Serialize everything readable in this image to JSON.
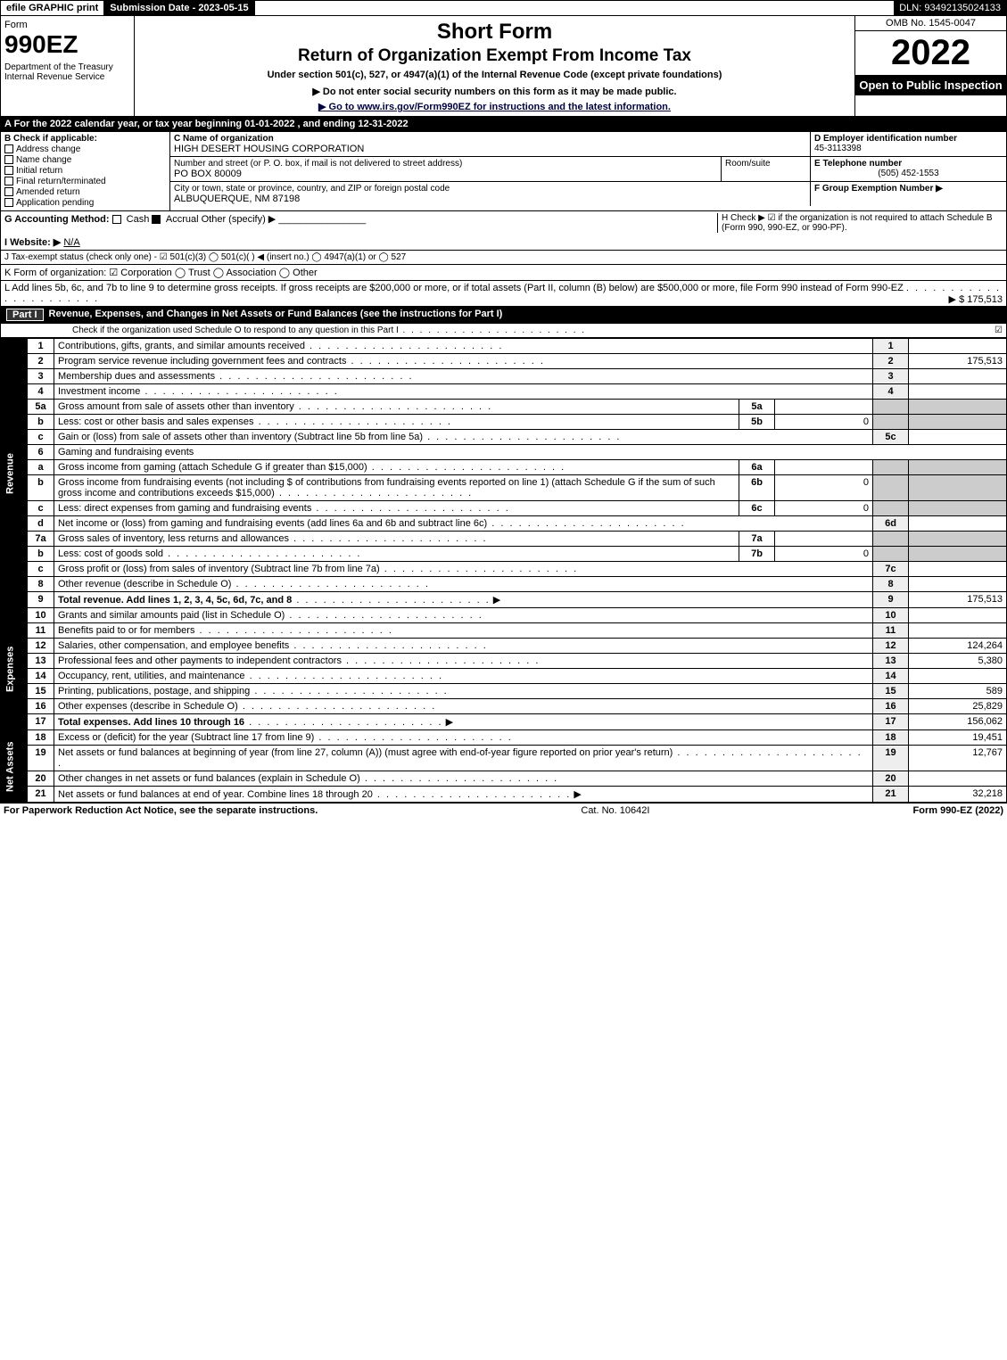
{
  "header_bar": {
    "efile": "efile GRAPHIC print",
    "submission": "Submission Date - 2023-05-15",
    "dln": "DLN: 93492135024133"
  },
  "top": {
    "form_word": "Form",
    "form_num": "990EZ",
    "dept": "Department of the Treasury\nInternal Revenue Service",
    "title1": "Short Form",
    "title2": "Return of Organization Exempt From Income Tax",
    "subtitle": "Under section 501(c), 527, or 4947(a)(1) of the Internal Revenue Code (except private foundations)",
    "warn": "▶ Do not enter social security numbers on this form as it may be made public.",
    "goto": "▶ Go to www.irs.gov/Form990EZ for instructions and the latest information.",
    "omb": "OMB No. 1545-0047",
    "year": "2022",
    "inspect": "Open to Public Inspection"
  },
  "sectA": "A  For the 2022 calendar year, or tax year beginning 01-01-2022 , and ending 12-31-2022",
  "colB": {
    "label": "B  Check if applicable:",
    "opts": [
      "Address change",
      "Name change",
      "Initial return",
      "Final return/terminated",
      "Amended return",
      "Application pending"
    ]
  },
  "colC": {
    "name_lbl": "C Name of organization",
    "name": "HIGH DESERT HOUSING CORPORATION",
    "street_lbl": "Number and street (or P. O. box, if mail is not delivered to street address)",
    "street": "PO BOX 80009",
    "room_lbl": "Room/suite",
    "city_lbl": "City or town, state or province, country, and ZIP or foreign postal code",
    "city": "ALBUQUERQUE, NM  87198"
  },
  "colD": {
    "ein_lbl": "D Employer identification number",
    "ein": "45-3113398",
    "tel_lbl": "E Telephone number",
    "tel": "(505) 452-1553",
    "grp_lbl": "F Group Exemption Number   ▶"
  },
  "lineG": {
    "label": "G Accounting Method:",
    "cash": "Cash",
    "accrual": "Accrual",
    "other": "Other (specify) ▶"
  },
  "lineH": "H  Check ▶ ☑ if the organization is not required to attach Schedule B (Form 990, 990-EZ, or 990-PF).",
  "lineI": {
    "label": "I Website: ▶",
    "value": "N/A"
  },
  "lineJ": "J Tax-exempt status (check only one) - ☑ 501(c)(3)  ◯ 501(c)(  ) ◀ (insert no.)  ◯ 4947(a)(1) or  ◯ 527",
  "lineK": "K Form of organization:  ☑ Corporation   ◯ Trust   ◯ Association   ◯ Other",
  "lineL": {
    "text": "L Add lines 5b, 6c, and 7b to line 9 to determine gross receipts. If gross receipts are $200,000 or more, or if total assets (Part II, column (B) below) are $500,000 or more, file Form 990 instead of Form 990-EZ",
    "amount": "▶ $ 175,513"
  },
  "part1": {
    "label": "Part I",
    "title": "Revenue, Expenses, and Changes in Net Assets or Fund Balances (see the instructions for Part I)",
    "subtitle": "Check if the organization used Schedule O to respond to any question in this Part I",
    "checked": "☑"
  },
  "sections": {
    "revenue": "Revenue",
    "expenses": "Expenses",
    "netassets": "Net Assets"
  },
  "rows": [
    {
      "sec": "revenue",
      "n": "1",
      "desc": "Contributions, gifts, grants, and similar amounts received",
      "box": "1",
      "amt": ""
    },
    {
      "sec": "revenue",
      "n": "2",
      "desc": "Program service revenue including government fees and contracts",
      "box": "2",
      "amt": "175,513"
    },
    {
      "sec": "revenue",
      "n": "3",
      "desc": "Membership dues and assessments",
      "box": "3",
      "amt": ""
    },
    {
      "sec": "revenue",
      "n": "4",
      "desc": "Investment income",
      "box": "4",
      "amt": ""
    },
    {
      "sec": "revenue",
      "n": "5a",
      "desc": "Gross amount from sale of assets other than inventory",
      "sub": "5a",
      "subamt": ""
    },
    {
      "sec": "revenue",
      "n": "b",
      "desc": "Less: cost or other basis and sales expenses",
      "sub": "5b",
      "subamt": "0"
    },
    {
      "sec": "revenue",
      "n": "c",
      "desc": "Gain or (loss) from sale of assets other than inventory (Subtract line 5b from line 5a)",
      "box": "5c",
      "amt": ""
    },
    {
      "sec": "revenue",
      "n": "6",
      "desc": "Gaming and fundraising events",
      "plain": true
    },
    {
      "sec": "revenue",
      "n": "a",
      "desc": "Gross income from gaming (attach Schedule G if greater than $15,000)",
      "sub": "6a",
      "subamt": ""
    },
    {
      "sec": "revenue",
      "n": "b",
      "desc": "Gross income from fundraising events (not including $                        of contributions from fundraising events reported on line 1) (attach Schedule G if the sum of such gross income and contributions exceeds $15,000)",
      "sub": "6b",
      "subamt": "0"
    },
    {
      "sec": "revenue",
      "n": "c",
      "desc": "Less: direct expenses from gaming and fundraising events",
      "sub": "6c",
      "subamt": "0"
    },
    {
      "sec": "revenue",
      "n": "d",
      "desc": "Net income or (loss) from gaming and fundraising events (add lines 6a and 6b and subtract line 6c)",
      "box": "6d",
      "amt": ""
    },
    {
      "sec": "revenue",
      "n": "7a",
      "desc": "Gross sales of inventory, less returns and allowances",
      "sub": "7a",
      "subamt": ""
    },
    {
      "sec": "revenue",
      "n": "b",
      "desc": "Less: cost of goods sold",
      "sub": "7b",
      "subamt": "0"
    },
    {
      "sec": "revenue",
      "n": "c",
      "desc": "Gross profit or (loss) from sales of inventory (Subtract line 7b from line 7a)",
      "box": "7c",
      "amt": ""
    },
    {
      "sec": "revenue",
      "n": "8",
      "desc": "Other revenue (describe in Schedule O)",
      "box": "8",
      "amt": ""
    },
    {
      "sec": "revenue",
      "n": "9",
      "desc": "Total revenue. Add lines 1, 2, 3, 4, 5c, 6d, 7c, and 8",
      "box": "9",
      "amt": "175,513",
      "bold": true,
      "arrow": true
    },
    {
      "sec": "expenses",
      "n": "10",
      "desc": "Grants and similar amounts paid (list in Schedule O)",
      "box": "10",
      "amt": ""
    },
    {
      "sec": "expenses",
      "n": "11",
      "desc": "Benefits paid to or for members",
      "box": "11",
      "amt": ""
    },
    {
      "sec": "expenses",
      "n": "12",
      "desc": "Salaries, other compensation, and employee benefits",
      "box": "12",
      "amt": "124,264"
    },
    {
      "sec": "expenses",
      "n": "13",
      "desc": "Professional fees and other payments to independent contractors",
      "box": "13",
      "amt": "5,380"
    },
    {
      "sec": "expenses",
      "n": "14",
      "desc": "Occupancy, rent, utilities, and maintenance",
      "box": "14",
      "amt": ""
    },
    {
      "sec": "expenses",
      "n": "15",
      "desc": "Printing, publications, postage, and shipping",
      "box": "15",
      "amt": "589"
    },
    {
      "sec": "expenses",
      "n": "16",
      "desc": "Other expenses (describe in Schedule O)",
      "box": "16",
      "amt": "25,829"
    },
    {
      "sec": "expenses",
      "n": "17",
      "desc": "Total expenses. Add lines 10 through 16",
      "box": "17",
      "amt": "156,062",
      "bold": true,
      "arrow": true
    },
    {
      "sec": "netassets",
      "n": "18",
      "desc": "Excess or (deficit) for the year (Subtract line 17 from line 9)",
      "box": "18",
      "amt": "19,451"
    },
    {
      "sec": "netassets",
      "n": "19",
      "desc": "Net assets or fund balances at beginning of year (from line 27, column (A)) (must agree with end-of-year figure reported on prior year's return)",
      "box": "19",
      "amt": "12,767"
    },
    {
      "sec": "netassets",
      "n": "20",
      "desc": "Other changes in net assets or fund balances (explain in Schedule O)",
      "box": "20",
      "amt": ""
    },
    {
      "sec": "netassets",
      "n": "21",
      "desc": "Net assets or fund balances at end of year. Combine lines 18 through 20",
      "box": "21",
      "amt": "32,218",
      "arrow": true
    }
  ],
  "footer": {
    "left": "For Paperwork Reduction Act Notice, see the separate instructions.",
    "mid": "Cat. No. 10642I",
    "right": "Form 990-EZ (2022)"
  }
}
